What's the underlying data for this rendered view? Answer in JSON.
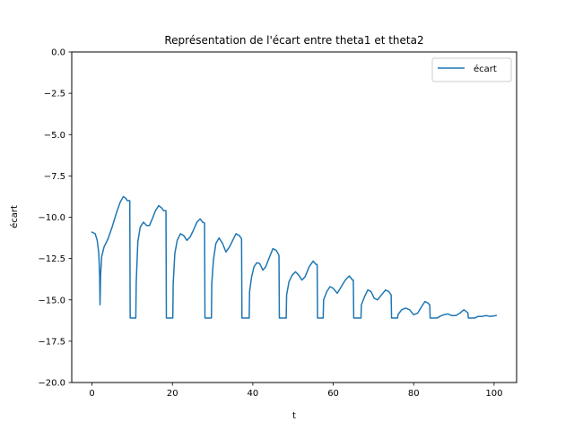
{
  "chart_data": {
    "type": "line",
    "title": "Représentation de l'écart entre theta1 et theta2",
    "xlabel": "t",
    "ylabel": "écart",
    "xlim": [
      -5.03,
      105.6
    ],
    "ylim": [
      -20,
      0
    ],
    "xticks": [
      0,
      20,
      40,
      60,
      80,
      100
    ],
    "yticks": [
      0.0,
      -2.5,
      -5.0,
      -7.5,
      -10.0,
      -12.5,
      -15.0,
      -17.5,
      -20.0
    ],
    "ytick_labels": [
      "0.0",
      "−2.5",
      "−5.0",
      "−7.5",
      "−10.0",
      "−12.5",
      "−15.0",
      "−17.5",
      "−20.0"
    ],
    "xtick_labels": [
      "0",
      "20",
      "40",
      "60",
      "80",
      "100"
    ],
    "grid": false,
    "legend_position": "top-right",
    "series": [
      {
        "name": "écart",
        "color": "#1f77b4",
        "points": [
          [
            0.0,
            -10.9
          ],
          [
            0.8,
            -11.0
          ],
          [
            1.3,
            -11.4
          ],
          [
            1.7,
            -12.2
          ],
          [
            1.9,
            -13.5
          ],
          [
            2.0,
            -15.3
          ],
          [
            2.15,
            -13.5
          ],
          [
            2.4,
            -12.4
          ],
          [
            3.0,
            -11.8
          ],
          [
            4.0,
            -11.3
          ],
          [
            5.0,
            -10.6
          ],
          [
            6.0,
            -9.8
          ],
          [
            7.0,
            -9.1
          ],
          [
            7.8,
            -8.75
          ],
          [
            8.4,
            -8.85
          ],
          [
            8.8,
            -9.0
          ],
          [
            9.4,
            -9.0
          ],
          [
            9.5,
            -16.1
          ],
          [
            10.9,
            -16.1
          ],
          [
            11.0,
            -14.0
          ],
          [
            11.4,
            -11.5
          ],
          [
            12.0,
            -10.6
          ],
          [
            12.8,
            -10.3
          ],
          [
            13.6,
            -10.5
          ],
          [
            14.3,
            -10.5
          ],
          [
            15.0,
            -10.1
          ],
          [
            15.8,
            -9.6
          ],
          [
            16.6,
            -9.3
          ],
          [
            17.4,
            -9.45
          ],
          [
            17.8,
            -9.6
          ],
          [
            18.4,
            -9.6
          ],
          [
            18.5,
            -16.1
          ],
          [
            20.1,
            -16.1
          ],
          [
            20.2,
            -14.0
          ],
          [
            20.6,
            -12.2
          ],
          [
            21.2,
            -11.4
          ],
          [
            22.0,
            -11.0
          ],
          [
            22.8,
            -11.1
          ],
          [
            23.6,
            -11.4
          ],
          [
            24.4,
            -11.2
          ],
          [
            25.2,
            -10.8
          ],
          [
            26.1,
            -10.3
          ],
          [
            26.9,
            -10.1
          ],
          [
            27.5,
            -10.3
          ],
          [
            28.0,
            -10.35
          ],
          [
            28.1,
            -16.1
          ],
          [
            29.7,
            -16.1
          ],
          [
            29.8,
            -14.0
          ],
          [
            30.2,
            -12.6
          ],
          [
            30.8,
            -11.6
          ],
          [
            31.6,
            -11.25
          ],
          [
            32.5,
            -11.6
          ],
          [
            33.3,
            -12.1
          ],
          [
            34.2,
            -11.8
          ],
          [
            35.0,
            -11.4
          ],
          [
            35.8,
            -11.0
          ],
          [
            36.6,
            -11.1
          ],
          [
            37.2,
            -11.3
          ],
          [
            37.3,
            -16.1
          ],
          [
            39.1,
            -16.1
          ],
          [
            39.2,
            -14.5
          ],
          [
            39.7,
            -13.6
          ],
          [
            40.3,
            -13.0
          ],
          [
            41.0,
            -12.75
          ],
          [
            41.7,
            -12.8
          ],
          [
            42.5,
            -13.2
          ],
          [
            43.2,
            -13.0
          ],
          [
            44.0,
            -12.5
          ],
          [
            45.0,
            -11.9
          ],
          [
            45.8,
            -12.0
          ],
          [
            46.5,
            -12.3
          ],
          [
            46.6,
            -16.1
          ],
          [
            48.3,
            -16.1
          ],
          [
            48.4,
            -14.7
          ],
          [
            49.0,
            -13.9
          ],
          [
            49.8,
            -13.5
          ],
          [
            50.6,
            -13.3
          ],
          [
            51.4,
            -13.5
          ],
          [
            52.2,
            -13.8
          ],
          [
            53.0,
            -13.6
          ],
          [
            54.0,
            -13.0
          ],
          [
            55.0,
            -12.65
          ],
          [
            55.7,
            -12.85
          ],
          [
            56.0,
            -12.85
          ],
          [
            56.1,
            -16.1
          ],
          [
            57.5,
            -16.1
          ],
          [
            57.6,
            -15.0
          ],
          [
            58.4,
            -14.5
          ],
          [
            59.2,
            -14.2
          ],
          [
            60.0,
            -14.3
          ],
          [
            61.0,
            -14.6
          ],
          [
            62.0,
            -14.2
          ],
          [
            63.0,
            -13.8
          ],
          [
            64.0,
            -13.55
          ],
          [
            64.8,
            -13.8
          ],
          [
            65.0,
            -13.8
          ],
          [
            65.1,
            -16.1
          ],
          [
            66.9,
            -16.1
          ],
          [
            67.0,
            -15.3
          ],
          [
            67.8,
            -14.8
          ],
          [
            68.6,
            -14.4
          ],
          [
            69.4,
            -14.5
          ],
          [
            70.2,
            -14.9
          ],
          [
            71.0,
            -15.0
          ],
          [
            72.0,
            -14.7
          ],
          [
            73.0,
            -14.4
          ],
          [
            73.8,
            -14.5
          ],
          [
            74.4,
            -14.7
          ],
          [
            74.5,
            -16.1
          ],
          [
            76.0,
            -16.1
          ],
          [
            76.1,
            -15.9
          ],
          [
            77.0,
            -15.6
          ],
          [
            78.0,
            -15.5
          ],
          [
            79.0,
            -15.6
          ],
          [
            80.0,
            -15.9
          ],
          [
            81.0,
            -15.8
          ],
          [
            82.0,
            -15.4
          ],
          [
            82.8,
            -15.1
          ],
          [
            83.6,
            -15.2
          ],
          [
            84.0,
            -15.3
          ],
          [
            84.1,
            -16.1
          ],
          [
            85.8,
            -16.1
          ],
          [
            86.5,
            -16.0
          ],
          [
            87.5,
            -15.9
          ],
          [
            88.5,
            -15.85
          ],
          [
            89.5,
            -15.95
          ],
          [
            90.5,
            -15.95
          ],
          [
            91.5,
            -15.8
          ],
          [
            92.5,
            -15.6
          ],
          [
            93.3,
            -15.75
          ],
          [
            93.5,
            -15.8
          ],
          [
            93.6,
            -16.1
          ],
          [
            95.2,
            -16.1
          ],
          [
            96.0,
            -16.0
          ],
          [
            97.0,
            -16.0
          ],
          [
            98.0,
            -15.95
          ],
          [
            99.0,
            -16.0
          ],
          [
            100.5,
            -15.95
          ]
        ]
      }
    ]
  }
}
